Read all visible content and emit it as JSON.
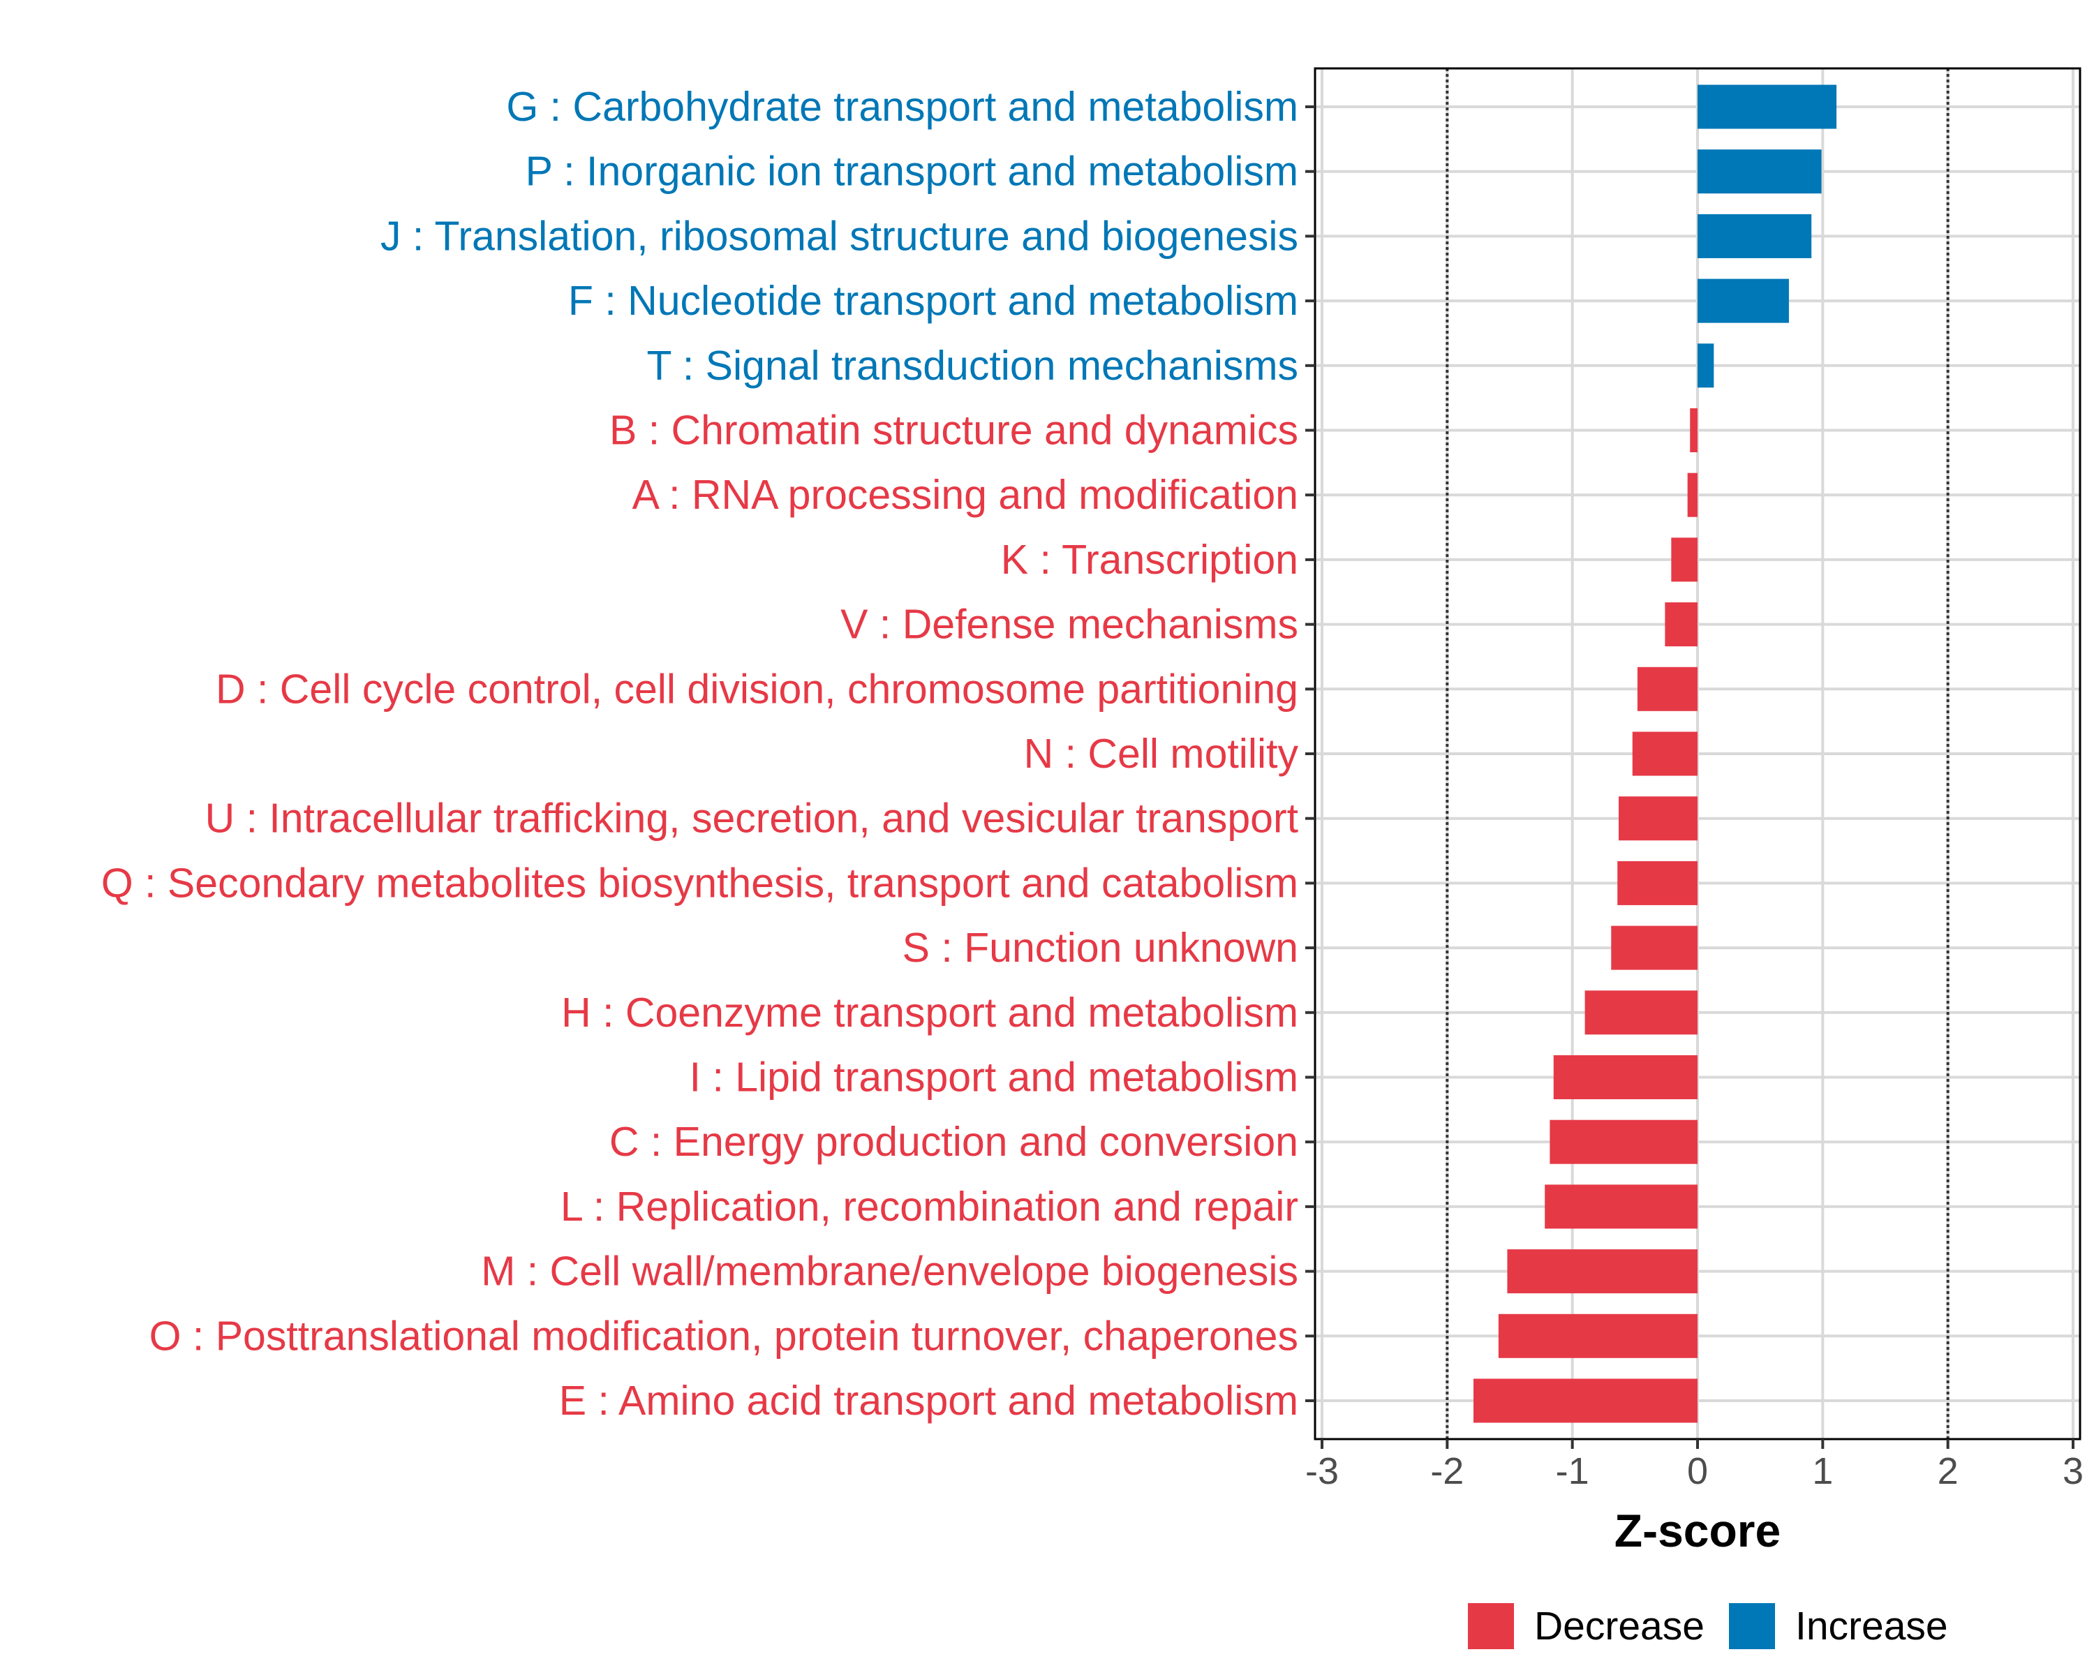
{
  "chart_data": {
    "type": "bar",
    "orientation": "horizontal",
    "title": "",
    "xlabel": "Z-score",
    "ylabel": "",
    "xlim": [
      -3,
      3
    ],
    "xticks": [
      -3,
      -2,
      -1,
      0,
      1,
      2,
      3
    ],
    "xtick_labels": [
      "-3",
      "-2",
      "-1",
      "0",
      "1",
      "2",
      "3"
    ],
    "reference_lines": [
      -2,
      2
    ],
    "grid": true,
    "legend_position": "bottom",
    "colors": {
      "Decrease": "#e63946",
      "Increase": "#0077b6"
    },
    "legend": [
      {
        "key": "Decrease",
        "label": "Decrease"
      },
      {
        "key": "Increase",
        "label": "Increase"
      }
    ],
    "categories": [
      "G : Carbohydrate transport and metabolism",
      "P : Inorganic ion transport and metabolism",
      "J : Translation, ribosomal structure and biogenesis",
      "F : Nucleotide transport and metabolism",
      "T : Signal transduction mechanisms",
      "B : Chromatin structure and dynamics",
      "A : RNA processing and modification",
      "K : Transcription",
      "V : Defense mechanisms",
      "D : Cell cycle control, cell division, chromosome partitioning",
      "N : Cell motility",
      "U : Intracellular trafficking, secretion, and vesicular transport",
      "Q : Secondary metabolites biosynthesis, transport and catabolism",
      "S : Function unknown",
      "H : Coenzyme transport and metabolism",
      "I : Lipid transport and metabolism",
      "C : Energy production and conversion",
      "L : Replication, recombination and repair",
      "M : Cell wall/membrane/envelope biogenesis",
      "O : Posttranslational modification, protein turnover, chaperones",
      "E : Amino acid transport and metabolism"
    ],
    "values": [
      1.11,
      0.99,
      0.91,
      0.73,
      0.13,
      -0.06,
      -0.08,
      -0.21,
      -0.26,
      -0.48,
      -0.52,
      -0.63,
      -0.64,
      -0.69,
      -0.9,
      -1.15,
      -1.18,
      -1.22,
      -1.52,
      -1.59,
      -1.79
    ],
    "groups": [
      "Increase",
      "Increase",
      "Increase",
      "Increase",
      "Increase",
      "Decrease",
      "Decrease",
      "Decrease",
      "Decrease",
      "Decrease",
      "Decrease",
      "Decrease",
      "Decrease",
      "Decrease",
      "Decrease",
      "Decrease",
      "Decrease",
      "Decrease",
      "Decrease",
      "Decrease",
      "Decrease"
    ]
  }
}
